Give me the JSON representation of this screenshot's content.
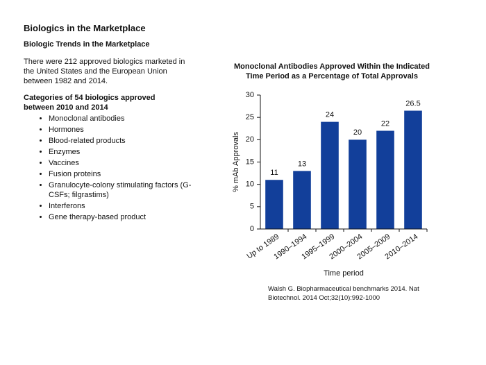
{
  "header": {
    "title": "Biologics in the Marketplace",
    "subtitle": "Biologic Trends in the Marketplace"
  },
  "intro": "There were 212 approved biologics marketed in the United States and the European Union between 1982 and 2014.",
  "categories_heading": "Categories of 54 biologics approved between 2010 and 2014",
  "items": [
    "Monoclonal antibodies",
    "Hormones",
    "Blood-related products",
    "Enzymes",
    "Vaccines",
    "Fusion proteins",
    "Granulocyte-colony stimulating factors (G-CSFs; filgrastims)",
    "Interferons",
    "Gene therapy-based product"
  ],
  "citation": "Walsh G. Biopharmaceutical benchmarks 2014. Nat Biotechnol. 2014 Oct;32(10):992-1000",
  "chart_data": {
    "type": "bar",
    "title": [
      "Monoclonal Antibodies Approved Within the Indicated",
      "Time Period as a Percentage of Total Approvals"
    ],
    "x_label": "Time period",
    "y_label": "% mAb Approvals",
    "categories": [
      "Up to 1989",
      "1990–1994",
      "1995–1999",
      "2000–2004",
      "2005–2009",
      "2010–2014"
    ],
    "values": [
      11,
      13,
      24,
      20,
      22,
      26.5
    ],
    "color": "#123f9a",
    "ylim": [
      0,
      30
    ],
    "yticks": [
      0,
      5,
      10,
      15,
      20,
      25,
      30
    ],
    "grid": false
  }
}
